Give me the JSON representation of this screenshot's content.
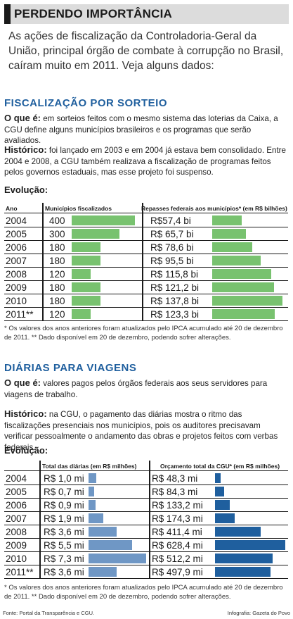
{
  "header": {
    "title": "PERDENDO IMPORTÂNCIA"
  },
  "intro": "As ações de fiscalização da Controladoria-Geral da União, principal órgão de combate à corrupção no Brasil, caíram muito em 2011. Veja alguns dados:",
  "section1": {
    "title": "FISCALIZAÇÃO POR SORTEIO",
    "what_label": "O que é:",
    "what_text": " em sorteios feitos com o mesmo sistema das loterias da Caixa, a CGU define alguns municípios brasileiros e os programas que serão avaliados.",
    "history_label": "Histórico:",
    "history_text": " foi lançado em 2003 e em 2004 já estava bem consolidado. Entre 2004 e 2008, a CGU também realizava a fiscalização de programas feitos pelos governos estaduais, mas esse projeto foi suspenso.",
    "evolution_label": "Evolução:",
    "note": "* Os valores dos anos anteriores foram atualizados pelo IPCA acumulado até 20 de dezembro de 2011. ** Dado disponível em 20 de dezembro, podendo sofrer alterações."
  },
  "section2": {
    "title": "DIÁRIAS PARA VIAGENS",
    "what_label": "O que é:",
    "what_text": " valores pagos pelos órgãos federais aos seus servidores para viagens de trabalho.",
    "history_label": "Histórico:",
    "history_text": " na CGU, o pagamento das diárias mostra o ritmo das fiscalizações presenciais nos municípios, pois os auditores precisavam verificar pessoalmente o andamento das obras e projetos feitos com verbas federais.",
    "evolution_label": "Evolução:",
    "note": "* Os valores dos anos anteriores foram atualizados pelo IPCA acumulado até 20 de dezembro de 2011. ** Dado disponível em 20 de dezembro, podendo sofrer alterações."
  },
  "footer": {
    "source": "Fonte: Portal da Transparência e CGU.",
    "credit": "Infografia: Gazeta do Povo"
  },
  "colors": {
    "green": "#78c26f",
    "blue_light": "#6f97c5",
    "blue_dark": "#1f5f9e",
    "title_blue": "#1f5f9e"
  },
  "chart_data": [
    {
      "type": "table",
      "columns": [
        "Ano",
        "Municípios fiscalizados",
        "Repasses federais aos municípios* (em R$ bilhões)"
      ],
      "categories": [
        "2004",
        "2005",
        "2006",
        "2007",
        "2008",
        "2009",
        "2010",
        "2011**"
      ],
      "series": [
        {
          "name": "Municípios fiscalizados",
          "values": [
            400,
            300,
            180,
            180,
            120,
            180,
            180,
            120
          ],
          "labels": [
            "400",
            "300",
            "180",
            "180",
            "120",
            "180",
            "180",
            "120"
          ]
        },
        {
          "name": "Repasses federais aos municípios* (em R$ bilhões)",
          "values": [
            57.4,
            65.7,
            78.6,
            95.5,
            115.8,
            121.2,
            137.8,
            123.3
          ],
          "labels": [
            "R$57,4 bi",
            "R$ 65,7 bi",
            "R$ 78,6 bi",
            "R$ 95,5 bi",
            "R$ 115,8 bi",
            "R$ 121,2 bi",
            "R$ 137,8 bi",
            "R$ 123,3 bi"
          ]
        }
      ]
    },
    {
      "type": "table",
      "columns": [
        "",
        "Total das diárias (em R$ milhões)",
        "Orçamento total da CGU* (em R$ milhões)"
      ],
      "categories": [
        "2004",
        "2005",
        "2006",
        "2007",
        "2008",
        "2009",
        "2010",
        "2011**"
      ],
      "series": [
        {
          "name": "Total das diárias (em R$ milhões)",
          "values": [
            1.0,
            0.7,
            0.9,
            1.9,
            3.6,
            5.5,
            7.3,
            3.6
          ],
          "labels": [
            "R$ 1,0 mi",
            "R$ 0,7 mi",
            "R$ 0,9 mi",
            "R$ 1,9 mi",
            "R$ 3,6 mi",
            "R$ 5,5 mi",
            "R$ 7,3 mi",
            "R$ 3,6 mi"
          ]
        },
        {
          "name": "Orçamento total da CGU* (em R$ milhões)",
          "values": [
            48.3,
            84.3,
            133.2,
            174.3,
            411.4,
            628.4,
            512.2,
            497.9
          ],
          "labels": [
            "R$ 48,3 mi",
            "R$ 84,3 mi",
            "R$ 133,2 mi",
            "R$ 174,3 mi",
            "R$ 411,4 mi",
            "R$ 628,4 mi",
            "R$ 512,2 mi",
            "R$ 497,9 mi"
          ]
        }
      ]
    }
  ]
}
